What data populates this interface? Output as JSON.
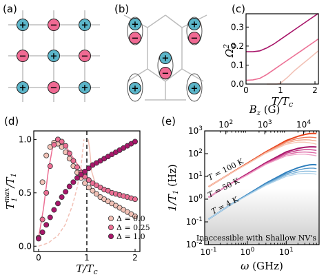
{
  "panels": {
    "a": {
      "label": "(a)"
    },
    "b": {
      "label": "(b)"
    },
    "c": {
      "label": "(c)"
    },
    "d": {
      "label": "(d)"
    },
    "e": {
      "label": "(e)"
    }
  },
  "lattice": {
    "plus_color": "#5bb5c9",
    "minus_color": "#f06a93",
    "plus_symbol": "+",
    "minus_symbol": "−",
    "square_grid": [
      [
        "+",
        "−",
        "+"
      ],
      [
        "−",
        "+",
        "−"
      ],
      [
        "+",
        "−",
        "+"
      ]
    ]
  },
  "colors": {
    "dark": "#a8166a",
    "mid": "#ec6f94",
    "light": "#f2c1b6",
    "red": "#e8441c",
    "blue": "#2f7fbd",
    "shade": "#cccccc"
  },
  "chart_data": [
    {
      "panel": "c",
      "type": "line",
      "xlabel": "T/T_c",
      "ylabel": "Ω0^2",
      "xlim": [
        0,
        2.1
      ],
      "ylim": [
        0,
        0.37
      ],
      "xticks": [
        0,
        1,
        2
      ],
      "yticks": [
        0.0,
        0.1,
        0.2,
        0.3
      ],
      "series": [
        {
          "style": "dark",
          "x": [
            0,
            0.2,
            0.4,
            0.6,
            0.8,
            1.0,
            1.2,
            1.4,
            1.6,
            1.8,
            2.0,
            2.1
          ],
          "y": [
            0.17,
            0.17,
            0.175,
            0.19,
            0.21,
            0.235,
            0.26,
            0.285,
            0.31,
            0.335,
            0.36,
            0.372
          ]
        },
        {
          "style": "mid",
          "x": [
            0,
            0.2,
            0.4,
            0.6,
            0.8,
            1.0,
            1.2,
            1.4,
            1.6,
            1.8,
            2.0,
            2.1
          ],
          "y": [
            0.02,
            0.022,
            0.03,
            0.05,
            0.075,
            0.1,
            0.125,
            0.15,
            0.175,
            0.2,
            0.225,
            0.238
          ]
        },
        {
          "style": "light",
          "x": [
            0.6,
            0.9,
            1.0,
            1.2,
            1.4,
            1.6,
            1.8,
            2.0,
            2.1
          ],
          "y": [
            0,
            0.0,
            0.005,
            0.035,
            0.07,
            0.1,
            0.13,
            0.16,
            0.175
          ]
        }
      ]
    },
    {
      "panel": "d",
      "type": "scatter",
      "xlabel": "T/T_c",
      "ylabel": "T1^max/T1",
      "xlim": [
        -0.1,
        2.1
      ],
      "ylim": [
        -0.05,
        1.08
      ],
      "xticks": [
        0,
        1,
        2
      ],
      "yticks": [
        0.0,
        0.5,
        1.0
      ],
      "critical_line_x": 1.0,
      "legend_position": "lower-right",
      "series": [
        {
          "name": "Δ = 0.0",
          "style": "light",
          "x": [
            0.08,
            0.16,
            0.24,
            0.32,
            0.4,
            0.48,
            0.56,
            0.64,
            0.72,
            0.8,
            0.88,
            0.96,
            1.04,
            1.12,
            1.2,
            1.28,
            1.36,
            1.44,
            1.52,
            1.6,
            1.68,
            1.76,
            1.84,
            1.92,
            2.0
          ],
          "y": [
            0.6,
            0.85,
            0.93,
            0.97,
            0.96,
            0.93,
            0.88,
            0.82,
            0.75,
            0.69,
            0.64,
            0.59,
            0.55,
            0.52,
            0.49,
            0.46,
            0.44,
            0.42,
            0.4,
            0.38,
            0.36,
            0.34,
            0.32,
            0.3,
            0.28
          ]
        },
        {
          "name": "Δ = 0.25",
          "style": "mid",
          "x": [
            0.0,
            0.08,
            0.16,
            0.24,
            0.32,
            0.4,
            0.48,
            0.56,
            0.64,
            0.72,
            0.8,
            0.88,
            0.96,
            1.04,
            1.12,
            1.2,
            1.28,
            1.36,
            1.44,
            1.52,
            1.6,
            1.68,
            1.76,
            1.84,
            1.92,
            2.0
          ],
          "y": [
            0.08,
            0.25,
            0.5,
            0.75,
            0.95,
            1.0,
            0.98,
            0.94,
            0.87,
            0.8,
            0.74,
            0.69,
            0.65,
            0.62,
            0.59,
            0.57,
            0.55,
            0.53,
            0.52,
            0.5,
            0.49,
            0.48,
            0.47,
            0.46,
            0.45,
            0.44
          ]
        },
        {
          "name": "Δ = 1.0",
          "style": "dark",
          "x": [
            0.0,
            0.08,
            0.16,
            0.24,
            0.32,
            0.4,
            0.48,
            0.56,
            0.64,
            0.72,
            0.8,
            0.88,
            0.96,
            1.04,
            1.12,
            1.2,
            1.28,
            1.36,
            1.44,
            1.52,
            1.6,
            1.68,
            1.76,
            1.84,
            1.92,
            2.0
          ],
          "y": [
            0.07,
            0.13,
            0.2,
            0.27,
            0.34,
            0.4,
            0.46,
            0.51,
            0.56,
            0.6,
            0.64,
            0.67,
            0.7,
            0.73,
            0.76,
            0.78,
            0.8,
            0.82,
            0.84,
            0.86,
            0.88,
            0.9,
            0.92,
            0.94,
            0.96,
            0.98
          ]
        }
      ],
      "curves": [
        {
          "style": "mid",
          "x": [
            0,
            0.1,
            0.2,
            0.3,
            0.4,
            0.5,
            0.6,
            0.8,
            1.0,
            1.2,
            1.4,
            1.6,
            1.8,
            2.0
          ],
          "y": [
            0.08,
            0.35,
            0.7,
            0.95,
            1.0,
            0.97,
            0.91,
            0.77,
            0.65,
            0.57,
            0.52,
            0.49,
            0.46,
            0.44
          ]
        },
        {
          "style": "light-dashed",
          "x": [
            0.0,
            0.2,
            0.4,
            0.55,
            0.7,
            0.8,
            0.88,
            0.94
          ],
          "y": [
            0.0,
            0.03,
            0.1,
            0.2,
            0.38,
            0.55,
            0.75,
            1.0
          ]
        },
        {
          "style": "light-solid",
          "x": [
            1.03,
            1.06,
            1.1,
            1.2
          ],
          "y": [
            1.0,
            0.9,
            0.7,
            0.55
          ]
        }
      ],
      "legend": [
        "Δ = 0.0",
        "Δ = 0.25",
        "Δ = 1.0"
      ]
    },
    {
      "panel": "e",
      "type": "line",
      "xlabel": "ω (GHz)",
      "ylabel": "1/T1 (Hz)",
      "top_xlabel": "B_z (G)",
      "xscale": "log",
      "yscale": "log",
      "xlim": [
        0.08,
        70
      ],
      "ylim": [
        0.01,
        1000
      ],
      "xticks": [
        0.1,
        1,
        10
      ],
      "xtick_labels": [
        "10^-1",
        "10^0",
        "10^1"
      ],
      "yticks": [
        0.01,
        0.1,
        1,
        10,
        100,
        1000
      ],
      "ytick_labels": [
        "10^-2",
        "10^-1",
        "10^0",
        "10^1",
        "10^2",
        "10^3"
      ],
      "top_xticks": [
        100,
        1000,
        10000
      ],
      "top_xtick_labels": [
        "10^2",
        "10^3",
        "10^4"
      ],
      "shade_label": "Inaccessible with Shallow NV's",
      "annotations": [
        "T = 100 K",
        "T = 50 K",
        "T = 4 K"
      ],
      "groups": [
        {
          "label": "T = 100 K",
          "colors": [
            "#e8441c",
            "#ef7a5a",
            "#f4a58a",
            "#f7c6b3"
          ],
          "x": [
            0.1,
            0.3,
            1,
            3,
            10,
            20,
            30,
            40,
            50,
            60
          ],
          "y_sets": [
            [
              3.5,
              11,
              38,
              120,
              380,
              580,
              700,
              760,
              780,
              770
            ],
            [
              3.5,
              11,
              37,
              115,
              340,
              470,
              520,
              530,
              520,
              500
            ],
            [
              3.5,
              11,
              36,
              110,
              300,
              390,
              410,
              400,
              380,
              360
            ],
            [
              3.5,
              11,
              35,
              105,
              260,
              320,
              320,
              300,
              280,
              260
            ]
          ]
        },
        {
          "label": "T = 50 K",
          "colors": [
            "#a8166a",
            "#c53a86",
            "#de6aa6",
            "#efa3c8"
          ],
          "x": [
            0.1,
            0.3,
            1,
            3,
            10,
            20,
            30,
            40,
            50,
            60
          ],
          "y_sets": [
            [
              1.2,
              3.8,
              13,
              40,
              120,
              170,
              190,
              200,
              200,
              195
            ],
            [
              1.2,
              3.8,
              12.5,
              38,
              105,
              140,
              150,
              150,
              145,
              140
            ],
            [
              1.2,
              3.8,
              12,
              36,
              92,
              115,
              118,
              115,
              110,
              105
            ],
            [
              1.2,
              3.8,
              11.5,
              34,
              80,
              95,
              95,
              90,
              85,
              80
            ]
          ]
        },
        {
          "label": "T = 4 K",
          "colors": [
            "#2f7fbd",
            "#5a9ccc",
            "#86b9dc",
            "#b3d4ea"
          ],
          "x": [
            0.1,
            0.3,
            1,
            3,
            10,
            20,
            30,
            40,
            50,
            60
          ],
          "y_sets": [
            [
              0.13,
              0.45,
              1.6,
              5,
              15,
              24,
              29,
              32,
              33,
              32
            ],
            [
              0.13,
              0.45,
              1.55,
              4.7,
              13,
              19,
              22,
              23,
              23,
              22
            ],
            [
              0.13,
              0.45,
              1.5,
              4.4,
              11.5,
              15.5,
              17,
              17,
              16.5,
              16
            ],
            [
              0.13,
              0.45,
              1.45,
              4.1,
              10,
              13,
              13.5,
              13.5,
              13,
              12.5
            ]
          ]
        }
      ]
    }
  ]
}
